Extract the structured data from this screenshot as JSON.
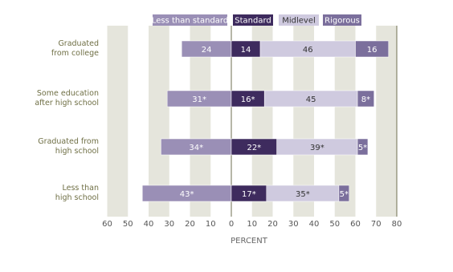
{
  "chart_data": {
    "type": "diverging-bar",
    "categories": [
      "Graduated\nfrom college",
      "Some education\nafter high school",
      "Graduated from\nhigh school",
      "Less than\nhigh school"
    ],
    "series": [
      {
        "name": "Less than standard",
        "color": "#9a8fb6",
        "direction": "left",
        "values": [
          24,
          31,
          34,
          43
        ],
        "value_labels": [
          "24",
          "31*",
          "34*",
          "43*"
        ]
      },
      {
        "name": "Standard",
        "color": "#3e2b5e",
        "direction": "right",
        "values": [
          14,
          16,
          22,
          17
        ],
        "value_labels": [
          "14",
          "16*",
          "22*",
          "17*"
        ]
      },
      {
        "name": "Midlevel",
        "color": "#cfcadf",
        "direction": "right",
        "values": [
          46,
          45,
          39,
          35
        ],
        "value_labels": [
          "46",
          "45",
          "39*",
          "35*"
        ]
      },
      {
        "name": "Rigorous",
        "color": "#7b6f9c",
        "direction": "right",
        "values": [
          16,
          8,
          5,
          5
        ],
        "value_labels": [
          "16",
          "8*",
          "5*",
          "5*"
        ]
      }
    ],
    "xlabel": "PERCENT",
    "xlim": [
      -60,
      80
    ],
    "xticks": [
      {
        "value": -60,
        "label": "60"
      },
      {
        "value": -50,
        "label": "50"
      },
      {
        "value": -40,
        "label": "40"
      },
      {
        "value": -30,
        "label": "30"
      },
      {
        "value": -20,
        "label": "20"
      },
      {
        "value": -10,
        "label": "10"
      },
      0,
      10,
      20,
      30,
      40,
      50,
      60,
      70,
      80
    ],
    "grid": true
  }
}
